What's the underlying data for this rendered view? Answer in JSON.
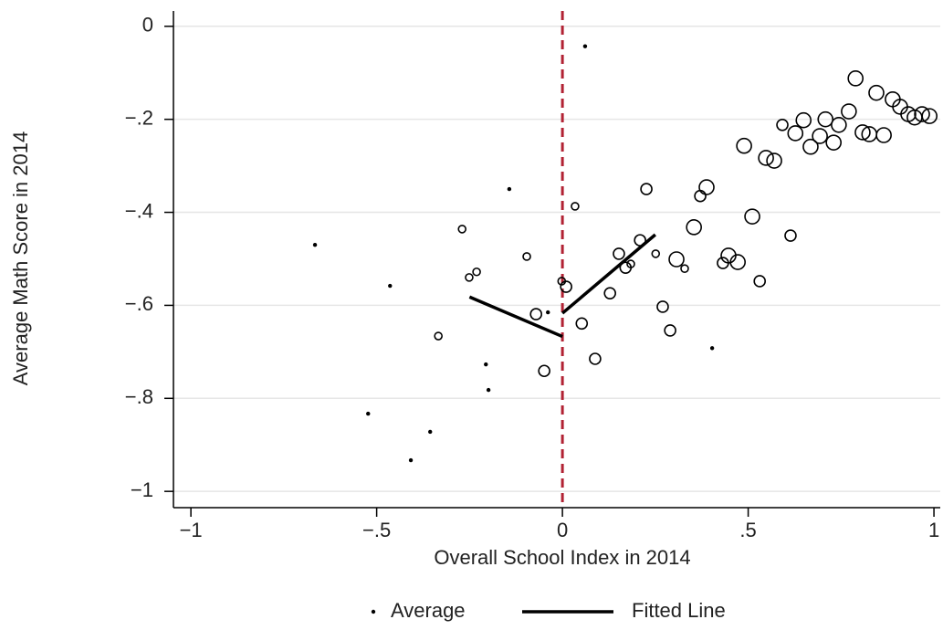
{
  "chart_data": {
    "type": "scatter",
    "x_label": "Overall School Index in 2014",
    "y_label": "Average Math Score in 2014",
    "xlim": [
      -1.047,
      1.017
    ],
    "ylim": [
      -1.035,
      0.033
    ],
    "xticks": [
      {
        "value": -1,
        "label": "−1"
      },
      {
        "value": -0.5,
        "label": "−.5"
      },
      0,
      {
        "value": 0.5,
        "label": ".5"
      },
      1
    ],
    "yticks": [
      0,
      {
        "value": -0.2,
        "label": "−.2"
      },
      {
        "value": -0.4,
        "label": "−.4"
      },
      {
        "value": -0.6,
        "label": "−.6"
      },
      {
        "value": -0.8,
        "label": "−.8"
      },
      {
        "value": -1,
        "label": "−1"
      }
    ],
    "grid": true,
    "reference_line": {
      "x": 0,
      "color": "#b22234"
    },
    "series": [
      {
        "name": "Average",
        "color": "#000000",
        "x": [
          -0.666,
          -0.523,
          -0.464,
          -0.408,
          -0.356,
          -0.206,
          -0.199,
          -0.143,
          -0.039,
          0.061,
          0.403,
          -0.334,
          -0.27,
          -0.251,
          -0.231,
          -0.096,
          -0.002,
          0.034,
          0.251,
          0.184,
          0.329,
          -0.071,
          -0.049,
          0.01,
          0.052,
          0.128,
          0.088,
          0.152,
          0.17,
          0.209,
          0.226,
          0.27,
          0.29,
          0.371,
          0.432,
          0.531,
          0.614,
          0.592,
          0.307,
          0.354,
          0.388,
          0.447,
          0.472,
          0.489,
          0.511,
          0.548,
          0.57,
          0.627,
          0.649,
          0.668,
          0.693,
          0.708,
          0.73,
          0.744,
          0.771,
          0.789,
          0.808,
          0.826,
          0.845,
          0.865,
          0.889,
          0.909,
          0.931,
          0.948,
          0.968,
          0.988
        ],
        "values": [
          -0.47,
          -0.833,
          -0.558,
          -0.933,
          -0.872,
          -0.727,
          -0.782,
          -0.35,
          -0.615,
          -0.043,
          -0.692,
          -0.666,
          -0.436,
          -0.54,
          -0.528,
          -0.495,
          -0.548,
          -0.387,
          -0.489,
          -0.511,
          -0.521,
          -0.619,
          -0.741,
          -0.56,
          -0.639,
          -0.574,
          -0.715,
          -0.489,
          -0.519,
          -0.46,
          -0.35,
          -0.603,
          -0.654,
          -0.365,
          -0.509,
          -0.548,
          -0.45,
          -0.212,
          -0.501,
          -0.432,
          -0.346,
          -0.493,
          -0.507,
          -0.257,
          -0.409,
          -0.283,
          -0.289,
          -0.23,
          -0.202,
          -0.259,
          -0.236,
          -0.2,
          -0.25,
          -0.212,
          -0.183,
          -0.112,
          -0.228,
          -0.232,
          -0.143,
          -0.234,
          -0.157,
          -0.173,
          -0.189,
          -0.196,
          -0.189,
          -0.193
        ],
        "sizes": [
          1,
          1,
          1,
          1,
          1,
          1,
          1,
          1,
          1,
          1,
          1,
          2,
          2,
          2,
          2,
          2,
          2,
          2,
          2,
          2,
          2,
          3,
          3,
          3,
          3,
          3,
          3,
          3,
          3,
          3,
          3,
          3,
          3,
          3,
          3,
          3,
          3,
          3,
          4,
          4,
          4,
          4,
          4,
          4,
          4,
          4,
          4,
          4,
          4,
          4,
          4,
          4,
          4,
          4,
          4,
          4,
          4,
          4,
          4,
          4,
          4,
          4,
          4,
          4,
          4,
          4
        ]
      },
      {
        "name": "Fitted Line",
        "color": "#000000",
        "line": true,
        "x": [
          -0.25,
          0,
          null,
          0,
          0.25
        ],
        "values": [
          -0.582,
          -0.667,
          null,
          -0.617,
          -0.448
        ]
      }
    ]
  }
}
